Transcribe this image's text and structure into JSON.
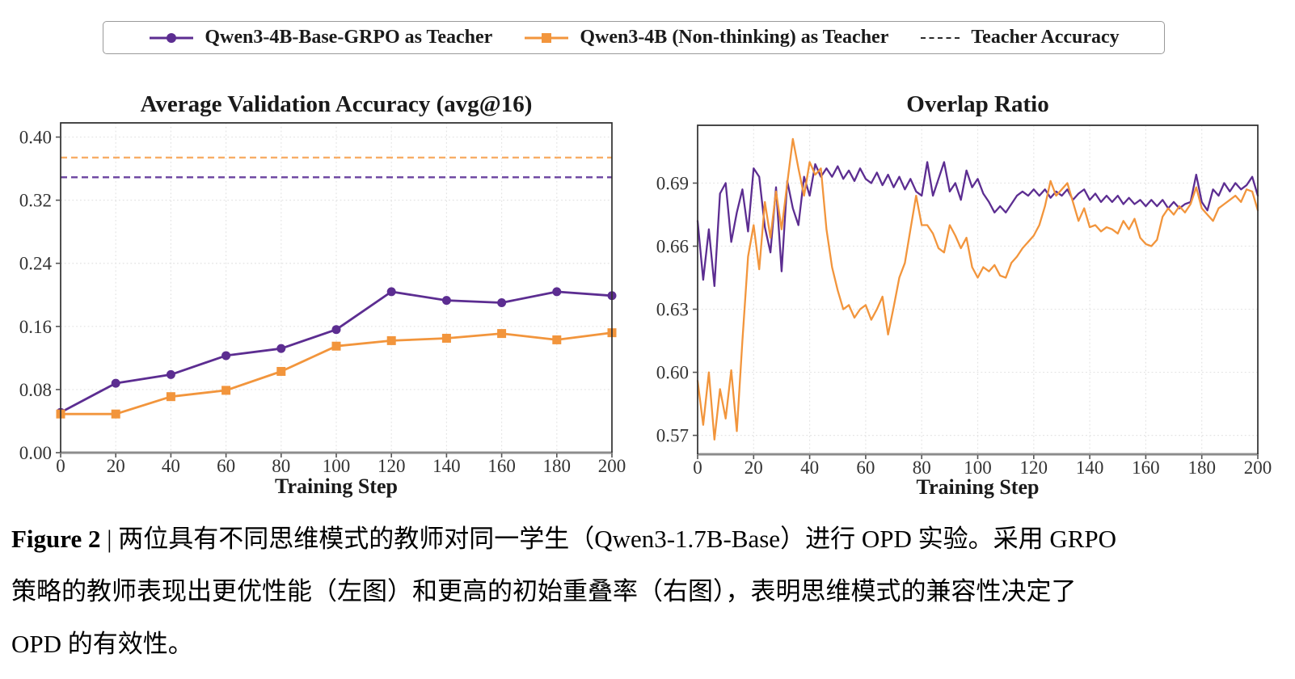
{
  "legend": {
    "items": [
      {
        "label": "Qwen3-4B-Base-GRPO as Teacher",
        "marker": "line-circle",
        "color": "#5c2d91"
      },
      {
        "label": "Qwen3-4B (Non-thinking) as Teacher",
        "marker": "line-square",
        "color": "#f2953c"
      },
      {
        "label": "Teacher Accuracy",
        "marker": "dashed-line",
        "color": "#2b2b2b"
      }
    ]
  },
  "chart_data": [
    {
      "type": "line",
      "title": "Average Validation Accuracy (avg@16)",
      "xlabel": "Training Step",
      "xticks": [
        0,
        20,
        40,
        60,
        80,
        100,
        120,
        140,
        160,
        180,
        200
      ],
      "yticks": [
        0.0,
        0.08,
        0.16,
        0.24,
        0.32,
        0.4
      ],
      "ytick_decimals": 2,
      "xlim": [
        0,
        200
      ],
      "ylim": [
        0,
        0.418
      ],
      "grid": true,
      "legend_position": "top-figure",
      "series": [
        {
          "name": "Qwen3-4B-Base-GRPO as Teacher",
          "color": "#5c2d91",
          "marker": "circle",
          "linewidth": 2.8,
          "x": [
            0,
            20,
            40,
            60,
            80,
            100,
            120,
            140,
            160,
            180,
            200
          ],
          "values": [
            0.051,
            0.088,
            0.099,
            0.123,
            0.132,
            0.156,
            0.204,
            0.193,
            0.19,
            0.204,
            0.199
          ]
        },
        {
          "name": "Qwen3-4B (Non-thinking) as Teacher",
          "color": "#f2953c",
          "marker": "square",
          "linewidth": 2.8,
          "x": [
            0,
            20,
            40,
            60,
            80,
            100,
            120,
            140,
            160,
            180,
            200
          ],
          "values": [
            0.049,
            0.049,
            0.071,
            0.079,
            0.103,
            0.135,
            0.142,
            0.145,
            0.151,
            0.143,
            0.152
          ]
        }
      ],
      "hlines": [
        {
          "name": "Teacher Accuracy (Qwen3-4B Non-thinking)",
          "y": 0.374,
          "color": "#f8ad66",
          "style": "dashed",
          "linewidth": 2.4
        },
        {
          "name": "Teacher Accuracy (Qwen3-4B-Base-GRPO)",
          "y": 0.349,
          "color": "#6b44a0",
          "style": "dashed",
          "linewidth": 2.4
        }
      ]
    },
    {
      "type": "line",
      "title": "Overlap Ratio",
      "xlabel": "Training Step",
      "xticks": [
        0,
        20,
        40,
        60,
        80,
        100,
        120,
        140,
        160,
        180,
        200
      ],
      "yticks": [
        0.57,
        0.6,
        0.63,
        0.66,
        0.69
      ],
      "ytick_decimals": 2,
      "xlim": [
        0,
        200
      ],
      "ylim": [
        0.561,
        0.7175
      ],
      "grid": true,
      "x_start": 0,
      "x_step": 2,
      "series": [
        {
          "name": "Qwen3-4B-Base-GRPO as Teacher",
          "color": "#5c2d91",
          "marker": "none",
          "linewidth": 2.3,
          "values": [
            0.672,
            0.644,
            0.668,
            0.641,
            0.685,
            0.69,
            0.662,
            0.676,
            0.687,
            0.667,
            0.697,
            0.693,
            0.669,
            0.657,
            0.688,
            0.648,
            0.691,
            0.678,
            0.67,
            0.693,
            0.684,
            0.699,
            0.693,
            0.697,
            0.693,
            0.698,
            0.692,
            0.696,
            0.691,
            0.697,
            0.692,
            0.69,
            0.695,
            0.689,
            0.694,
            0.688,
            0.693,
            0.687,
            0.692,
            0.686,
            0.684,
            0.7,
            0.684,
            0.692,
            0.7,
            0.686,
            0.69,
            0.682,
            0.696,
            0.688,
            0.692,
            0.685,
            0.681,
            0.676,
            0.679,
            0.676,
            0.68,
            0.684,
            0.686,
            0.684,
            0.687,
            0.684,
            0.687,
            0.683,
            0.686,
            0.684,
            0.687,
            0.682,
            0.685,
            0.687,
            0.682,
            0.685,
            0.681,
            0.684,
            0.681,
            0.684,
            0.68,
            0.683,
            0.68,
            0.682,
            0.679,
            0.682,
            0.679,
            0.682,
            0.678,
            0.681,
            0.678,
            0.68,
            0.681,
            0.694,
            0.681,
            0.677,
            0.687,
            0.684,
            0.69,
            0.686,
            0.69,
            0.687,
            0.689,
            0.693,
            0.684
          ]
        },
        {
          "name": "Qwen3-4B (Non-thinking) as Teacher",
          "color": "#f2953c",
          "marker": "none",
          "linewidth": 2.3,
          "values": [
            0.596,
            0.575,
            0.6,
            0.568,
            0.592,
            0.578,
            0.601,
            0.572,
            0.615,
            0.655,
            0.67,
            0.649,
            0.681,
            0.664,
            0.686,
            0.668,
            0.69,
            0.711,
            0.697,
            0.684,
            0.7,
            0.694,
            0.697,
            0.668,
            0.65,
            0.639,
            0.63,
            0.632,
            0.626,
            0.63,
            0.632,
            0.625,
            0.63,
            0.636,
            0.618,
            0.631,
            0.645,
            0.652,
            0.668,
            0.684,
            0.67,
            0.67,
            0.666,
            0.659,
            0.657,
            0.67,
            0.665,
            0.659,
            0.664,
            0.65,
            0.645,
            0.65,
            0.648,
            0.651,
            0.646,
            0.645,
            0.652,
            0.655,
            0.659,
            0.662,
            0.665,
            0.67,
            0.679,
            0.691,
            0.684,
            0.687,
            0.69,
            0.681,
            0.672,
            0.678,
            0.669,
            0.67,
            0.667,
            0.669,
            0.668,
            0.666,
            0.672,
            0.668,
            0.673,
            0.664,
            0.661,
            0.66,
            0.663,
            0.674,
            0.678,
            0.675,
            0.679,
            0.676,
            0.68,
            0.688,
            0.678,
            0.675,
            0.672,
            0.678,
            0.68,
            0.682,
            0.684,
            0.681,
            0.687,
            0.686,
            0.677
          ]
        }
      ]
    }
  ],
  "caption": {
    "figure_label": "Figure 2",
    "line1_rest": " | 两位具有不同思维模式的教师对同一学生（Qwen3-1.7B-Base）进行 OPD 实验。采用 GRPO",
    "line2": "策略的教师表现出更优性能（左图）和更高的初始重叠率（右图），表明思维模式的兼容性决定了",
    "line3": "OPD 的有效性。"
  },
  "style_colors": {
    "grid": "#e4e4e4",
    "spine": "#2f2f2f",
    "bottom_spine": "#8c8c8c",
    "tick_label": "#333333",
    "title": "#1a1a1a"
  }
}
